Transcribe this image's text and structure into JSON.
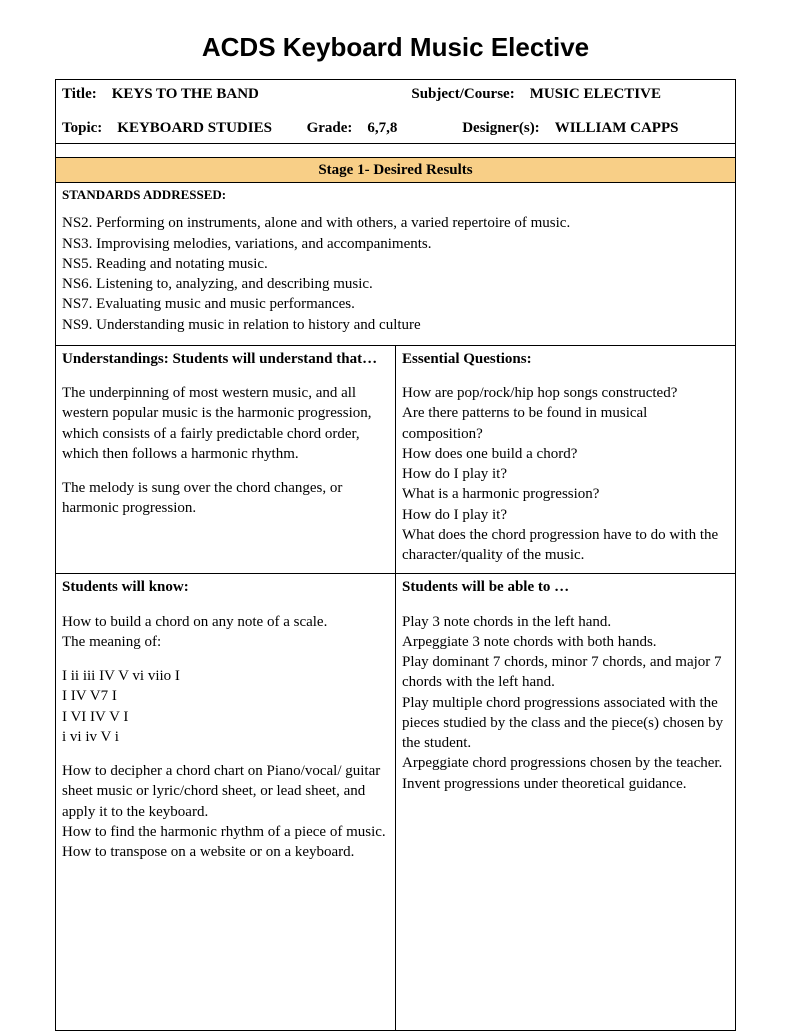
{
  "page_title": "ACDS Keyboard Music Elective",
  "header": {
    "title_label": "Title:",
    "title_value": "KEYS TO THE BAND",
    "subject_label": "Subject/Course:",
    "subject_value": "MUSIC ELECTIVE",
    "topic_label": "Topic:",
    "topic_value": "KEYBOARD STUDIES",
    "grade_label": "Grade:",
    "grade_value": "6,7,8",
    "designer_label": "Designer(s):",
    "designer_value": "WILLIAM CAPPS"
  },
  "stage_header": "Stage 1-  Desired Results",
  "standards_label": "STANDARDS ADDRESSED:",
  "standards": [
    "NS2. Performing on instruments, alone and with others, a varied repertoire of music.",
    "NS3. Improvising melodies, variations, and accompaniments.",
    "NS5. Reading and notating music.",
    "NS6. Listening to, analyzing, and describing music.",
    "NS7. Evaluating music and music performances.",
    "NS9. Understanding music in relation to history and culture"
  ],
  "understandings": {
    "title": "Understandings:  Students will understand that…",
    "paras": [
      "The underpinning of most western music, and all western popular music is the harmonic progression, which consists of a fairly predictable chord order, which then follows a harmonic rhythm.",
      "The melody is sung over the chord changes, or harmonic progression."
    ]
  },
  "essential_questions": {
    "title": "Essential Questions:",
    "lines": [
      "How are pop/rock/hip hop songs constructed?",
      "Are there patterns to be found in musical composition?",
      "How does one build a chord?",
      "How do I play it?",
      "What is a harmonic progression?",
      "How do I play it?",
      "What does the chord progression have to do with the character/quality of the music."
    ]
  },
  "know": {
    "title": "Students will know:",
    "paras": [
      "How to build a chord on any note of a scale.",
      "The meaning of:"
    ],
    "progressions": [
      "I ii iii IV V vi viio I",
      "I IV V7 I",
      "I VI IV V I",
      "i vi iv V i"
    ],
    "paras2": [
      "How to decipher a chord chart on Piano/vocal/ guitar sheet music or lyric/chord sheet, or lead sheet, and apply it to the keyboard.",
      "How to find the harmonic rhythm of a piece of music.",
      "How to transpose on a website or on a keyboard."
    ]
  },
  "able": {
    "title": "Students will be able to …",
    "lines": [
      "Play 3 note chords in the left hand.",
      "Arpeggiate 3 note chords with both hands.",
      "Play dominant 7 chords, minor 7 chords, and major 7 chords with the left hand.",
      "Play multiple chord progressions associated with the pieces studied by the class and the piece(s) chosen by the student.",
      "Arpeggiate chord progressions chosen by the teacher.",
      "Invent progressions under theoretical guidance."
    ]
  },
  "colors": {
    "stage_bg": "#f8cf87",
    "border": "#000000",
    "text": "#000000",
    "background": "#ffffff"
  }
}
